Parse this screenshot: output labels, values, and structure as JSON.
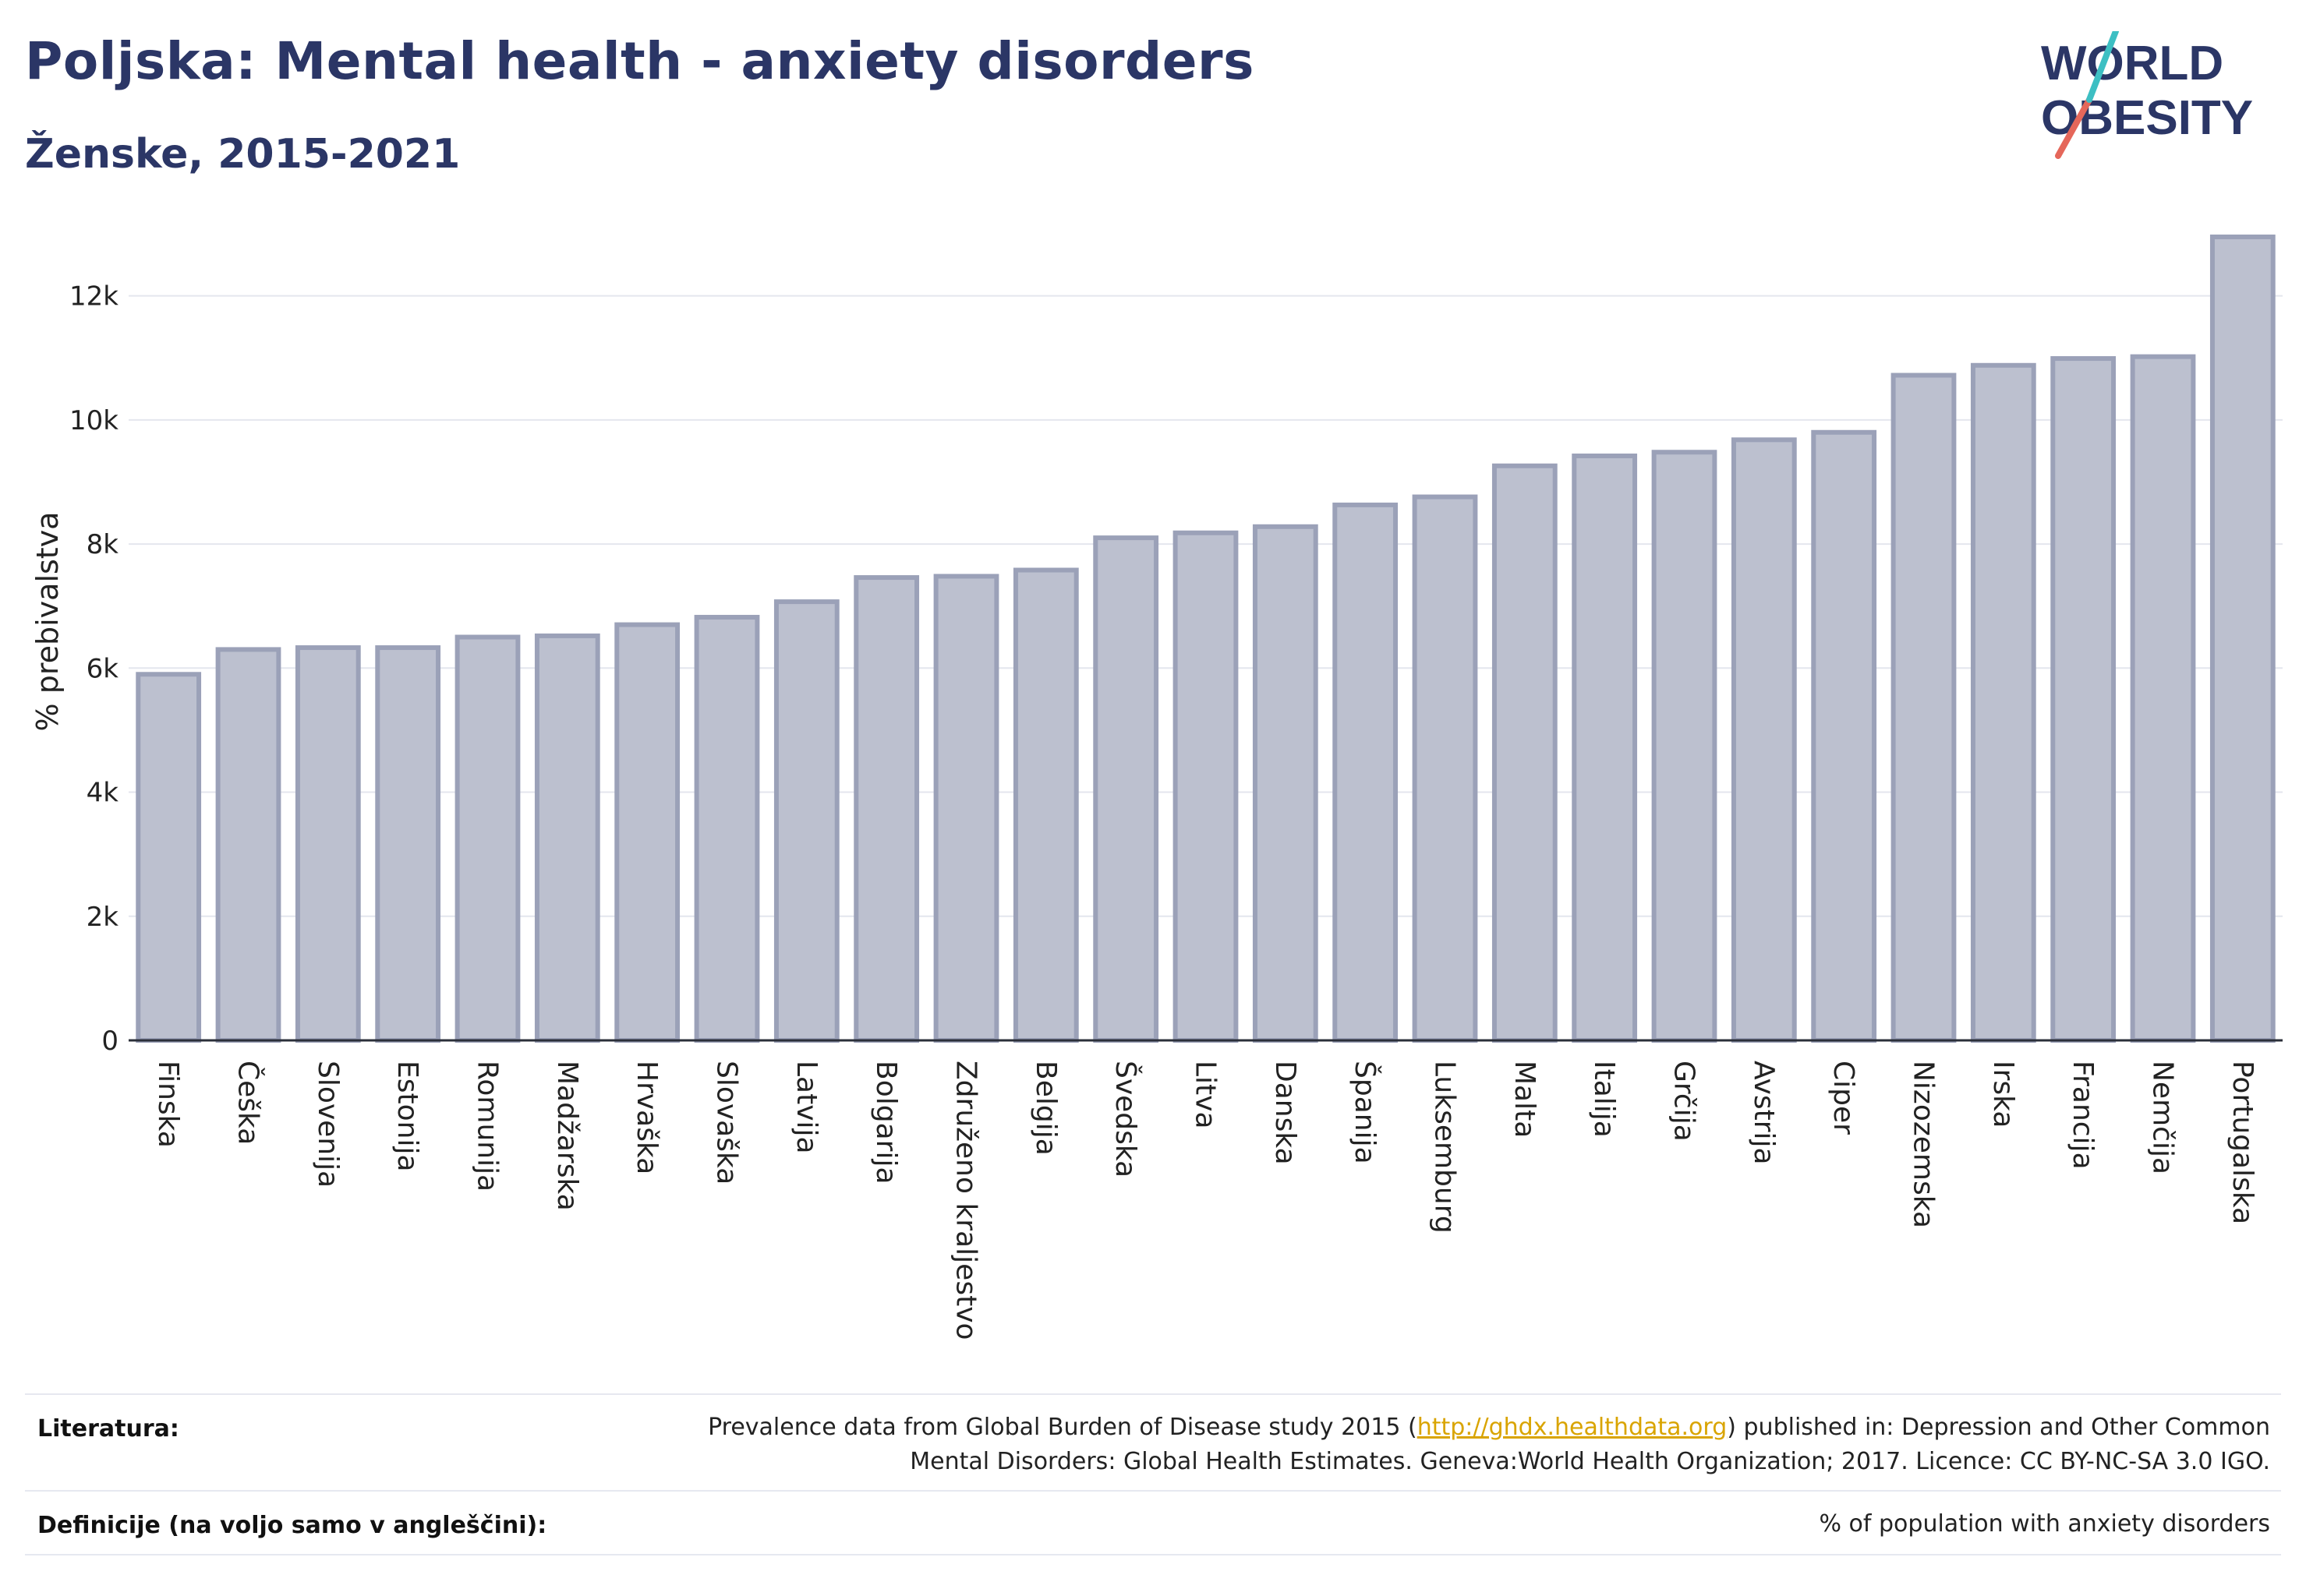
{
  "header": {
    "title": "Poljska: Mental health - anxiety disorders",
    "subtitle": "Ženske, 2015-2021"
  },
  "logo": {
    "line1": "WORLD",
    "line2": "OBESITY"
  },
  "colors": {
    "bar_fill": "#bcc0cf",
    "bar_stroke": "#9ba1b8",
    "title": "#2b3666",
    "link": "#d9a400"
  },
  "chart_data": {
    "type": "bar",
    "ylabel": "% prebivalstva",
    "ylim": [
      0,
      13000
    ],
    "yticks": [
      0,
      2000,
      4000,
      6000,
      8000,
      10000,
      12000
    ],
    "ytick_labels": [
      "0",
      "2k",
      "4k",
      "6k",
      "8k",
      "10k",
      "12k"
    ],
    "grid": true,
    "categories": [
      "Finska",
      "Češka",
      "Slovenija",
      "Estonija",
      "Romunija",
      "Madžarska",
      "Hrvaška",
      "Slovaška",
      "Latvija",
      "Bolgarija",
      "Združeno kraljestvo",
      "Belgija",
      "Švedska",
      "Litva",
      "Danska",
      "Španija",
      "Luksemburg",
      "Malta",
      "Italija",
      "Grčija",
      "Avstrija",
      "Ciper",
      "Nizozemska",
      "Irska",
      "Francija",
      "Nemčija",
      "Portugalska"
    ],
    "values": [
      5900,
      6300,
      6330,
      6330,
      6500,
      6520,
      6700,
      6820,
      7070,
      7460,
      7480,
      7580,
      8100,
      8180,
      8280,
      8630,
      8760,
      9260,
      9420,
      9480,
      9680,
      9800,
      10720,
      10880,
      10990,
      11020,
      12950
    ]
  },
  "footer": {
    "literature_label": "Literatura:",
    "literature_pre": "Prevalence data from Global Burden of Disease study 2015 (",
    "literature_link": "http://ghdx.healthdata.org",
    "literature_post": ") published in: Depression and Other Common",
    "literature_line2": "Mental Disorders: Global Health Estimates. Geneva:World Health Organization; 2017. Licence: CC BY-NC-SA 3.0 IGO.",
    "definitions_label": "Definicije (na voljo samo v angleščini):",
    "definitions_text": "% of population with anxiety disorders"
  }
}
